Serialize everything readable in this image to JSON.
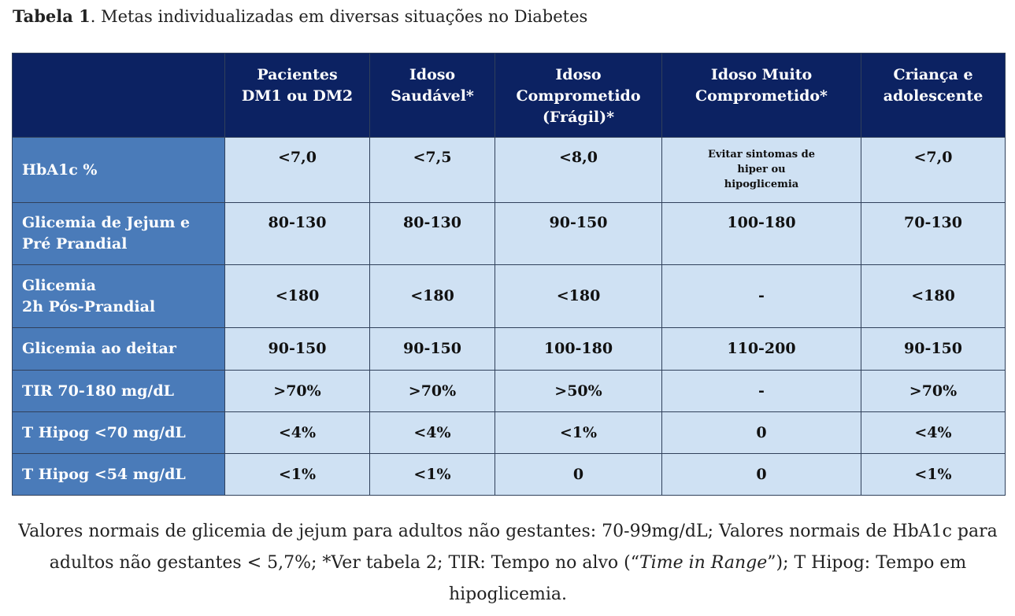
{
  "title": {
    "label": "Tabela 1",
    "text": ". Metas individualizadas em diversas situações no Diabetes"
  },
  "table": {
    "headers": [
      "Pacientes\nDM1 ou DM2",
      "Idoso\nSaudável*",
      "Idoso\nComprometido\n(Frágil)*",
      "Idoso Muito\nComprometido*",
      "Criança e\nadolescente"
    ],
    "rows": [
      {
        "label": "HbA1c %",
        "cells": [
          "<7,0",
          "<7,5",
          "<8,0",
          "Evitar sintomas de\nhiper ou\nhipoglicemia",
          "<7,0"
        ]
      },
      {
        "label": "Glicemia de Jejum e\nPré Prandial",
        "cells": [
          "80-130",
          "80-130",
          "90-150",
          "100-180",
          "70-130"
        ]
      },
      {
        "label": "Glicemia\n2h Pós-Prandial",
        "cells": [
          "<180",
          "<180",
          "<180",
          "-",
          "<180"
        ]
      },
      {
        "label": "Glicemia ao deitar",
        "cells": [
          "90-150",
          "90-150",
          "100-180",
          "110-200",
          "90-150"
        ]
      },
      {
        "label": "TIR 70-180 mg/dL",
        "cells": [
          ">70%",
          ">70%",
          ">50%",
          "-",
          ">70%"
        ]
      },
      {
        "label": "T Hipog <70 mg/dL",
        "cells": [
          "<4%",
          "<4%",
          "<1%",
          "0",
          "<4%"
        ]
      },
      {
        "label": "T Hipog <54 mg/dL",
        "cells": [
          "<1%",
          "<1%",
          "0",
          "0",
          "<1%"
        ]
      }
    ]
  },
  "footnote": {
    "before": "Valores normais de glicemia de jejum para adultos não gestantes: 70-99mg/dL; Valores normais de HbA1c para adultos não gestantes < 5,7%; *Ver tabela 2; TIR: Tempo no alvo (“",
    "italic": "Time in Range",
    "after": "”); T Hipog: Tempo em hipoglicemia."
  }
}
